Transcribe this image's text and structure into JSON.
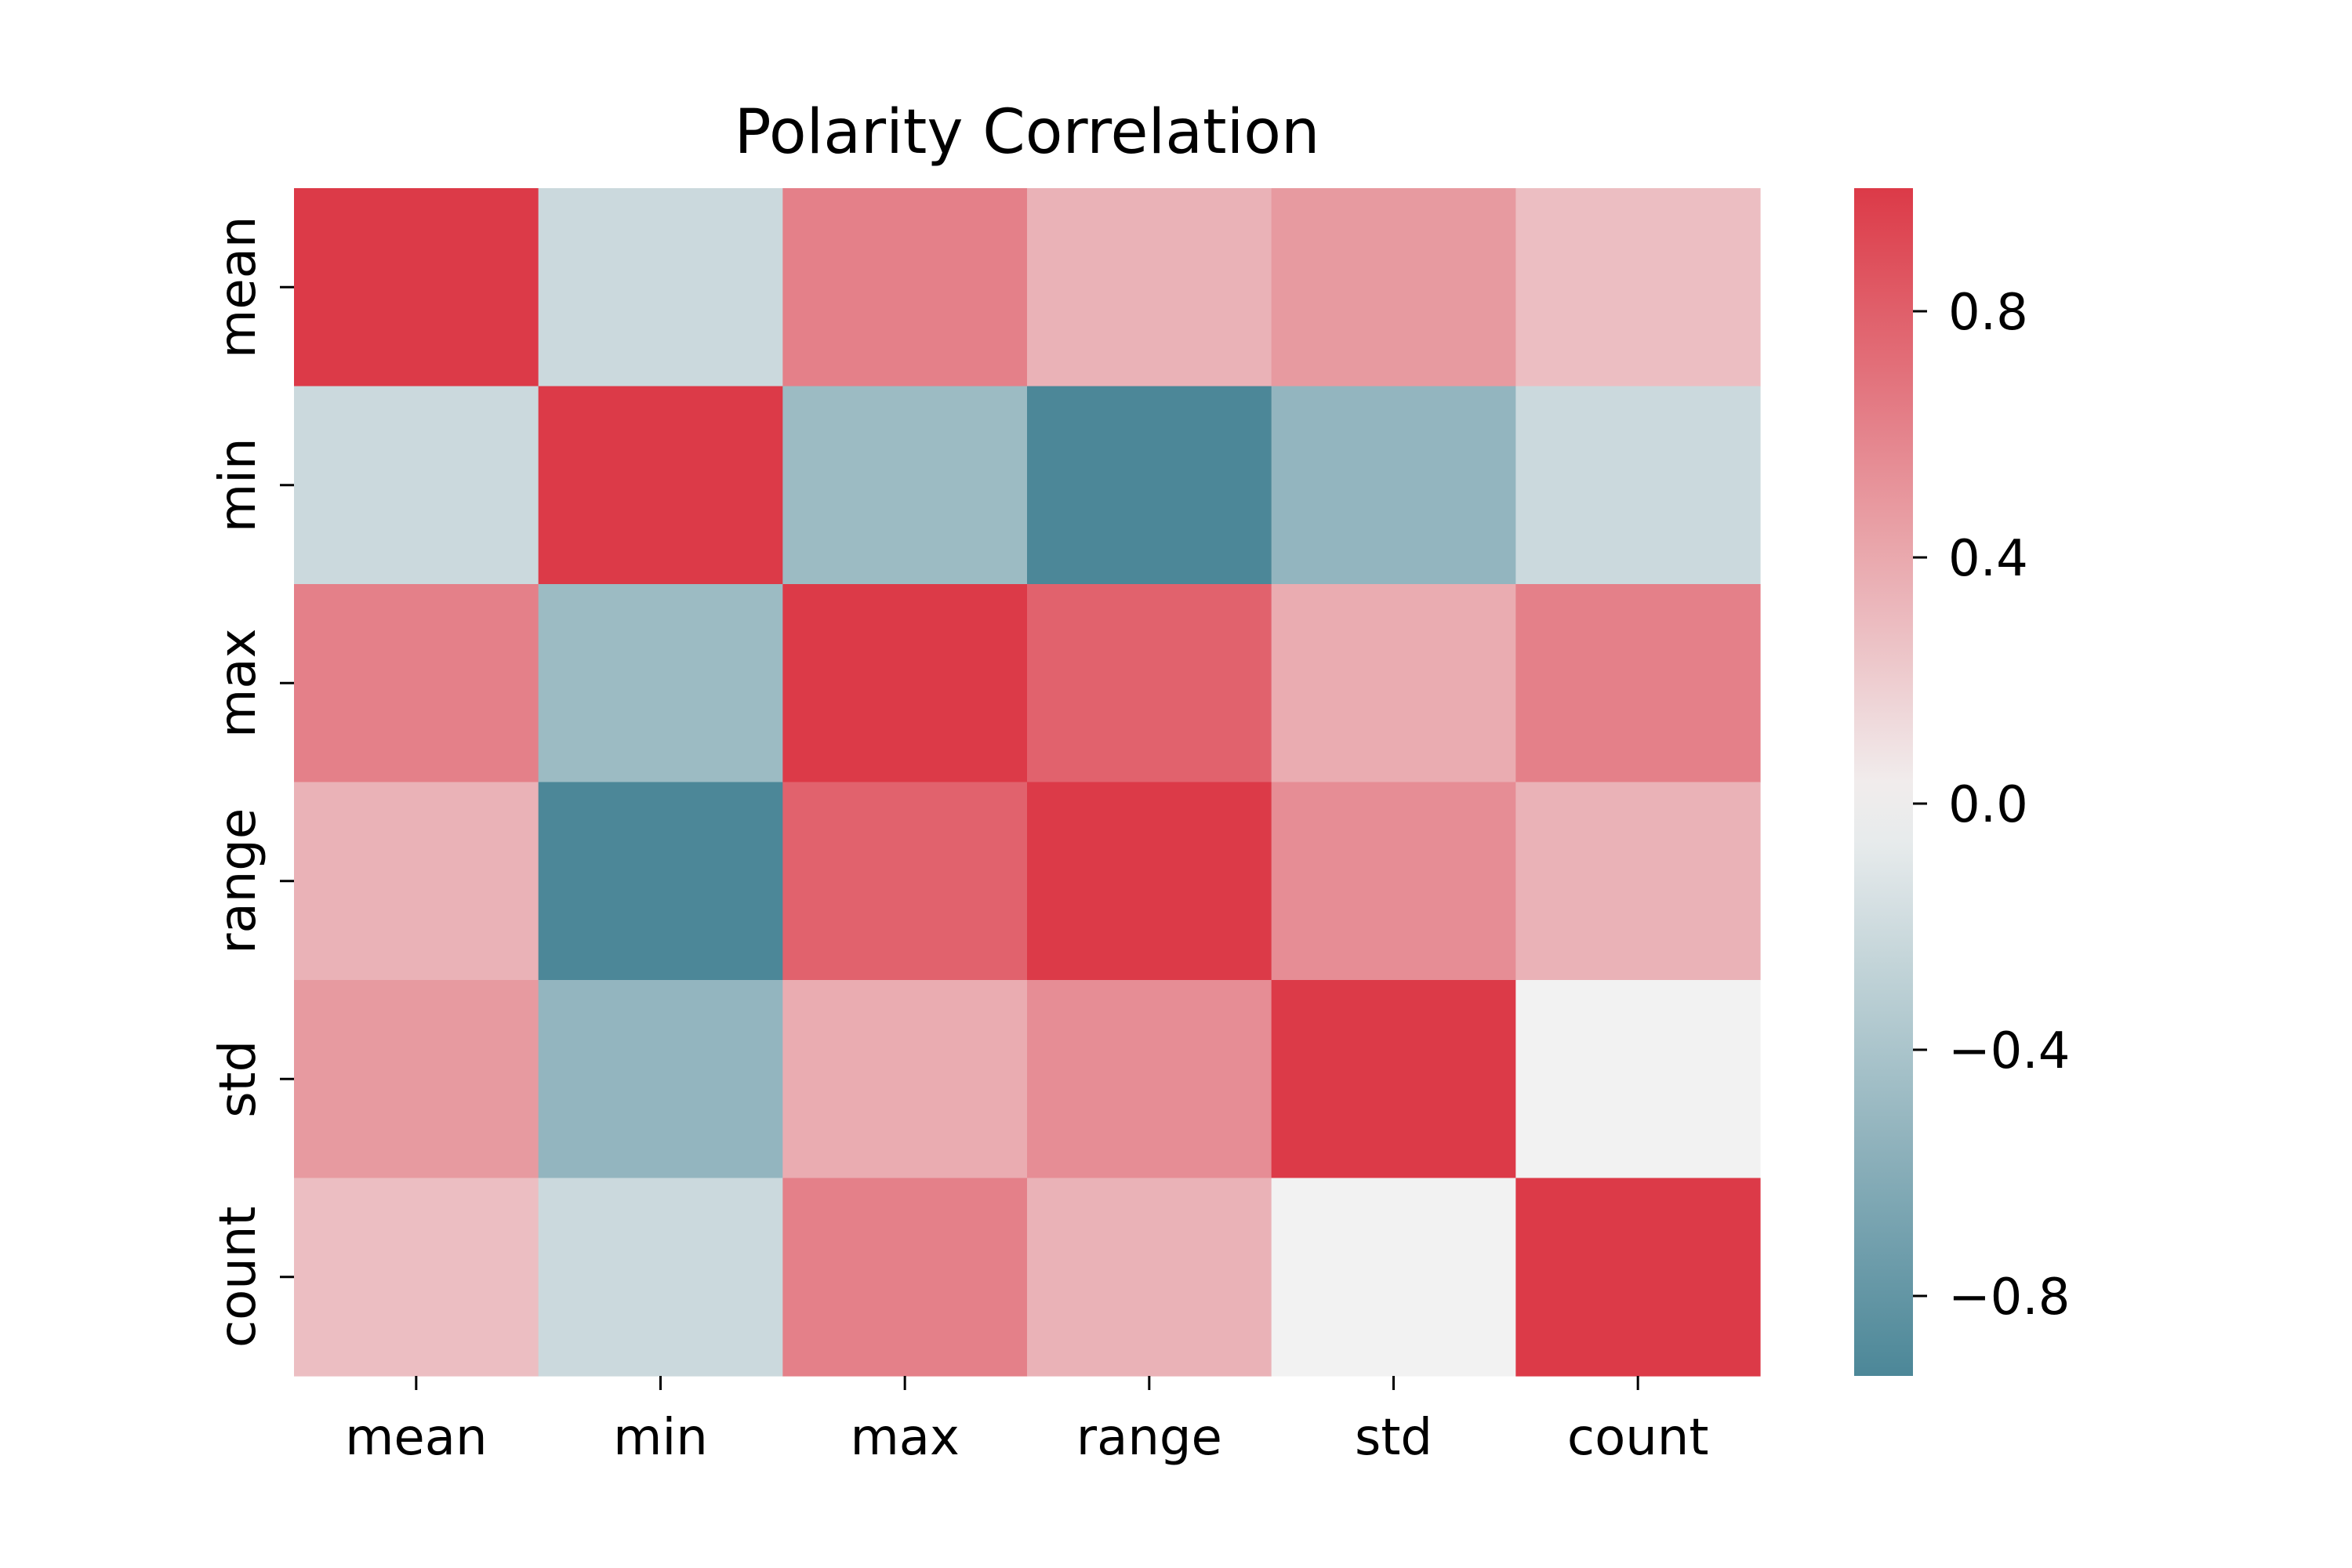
{
  "chart_data": {
    "type": "heatmap",
    "title": "Polarity Correlation",
    "xlabel": "",
    "ylabel": "",
    "x_categories": [
      "mean",
      "min",
      "max",
      "range",
      "std",
      "count"
    ],
    "y_categories": [
      "mean",
      "min",
      "max",
      "range",
      "std",
      "count"
    ],
    "values": [
      [
        1.0,
        -0.22,
        0.62,
        0.35,
        0.48,
        0.28
      ],
      [
        -0.22,
        1.0,
        -0.48,
        -0.93,
        -0.53,
        -0.22
      ],
      [
        0.62,
        -0.48,
        1.0,
        0.78,
        0.38,
        0.62
      ],
      [
        0.35,
        -0.93,
        0.78,
        1.0,
        0.55,
        0.35
      ],
      [
        0.48,
        -0.53,
        0.38,
        0.55,
        1.0,
        0.0
      ],
      [
        0.28,
        -0.22,
        0.62,
        0.35,
        0.0,
        1.0
      ]
    ],
    "colorbar": {
      "range": [
        -0.93,
        1.0
      ],
      "ticks": [
        0.8,
        0.4,
        0.0,
        -0.4,
        -0.8
      ],
      "tick_labels": [
        "0.8",
        "0.4",
        "0.0",
        "−0.4",
        "−0.8"
      ],
      "colors": {
        "negative": "#3f7f91",
        "center": "#f2f2f2",
        "positive": "#dc3a48"
      }
    }
  }
}
